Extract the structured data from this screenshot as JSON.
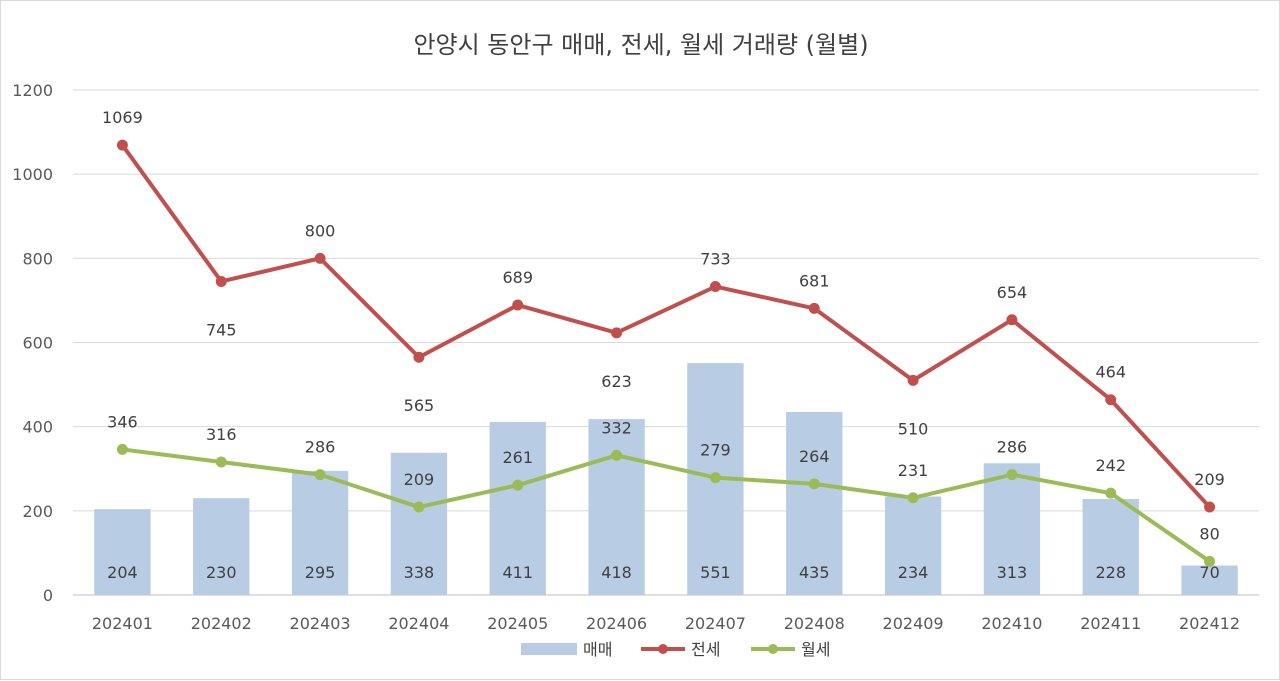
{
  "chart_data": {
    "type": "bar",
    "title": "안양시 동안구 매매, 전세, 월세 거래량 (월별)",
    "categories": [
      "202401",
      "202402",
      "202403",
      "202404",
      "202405",
      "202406",
      "202407",
      "202408",
      "202409",
      "202410",
      "202411",
      "202412"
    ],
    "ylim": [
      0,
      1200
    ],
    "yticks": [
      0,
      200,
      400,
      600,
      800,
      1000,
      1200
    ],
    "grid": true,
    "legend_position": "bottom",
    "series": [
      {
        "name": "매매",
        "type": "bar",
        "color": "#b8cce4",
        "values": [
          204,
          230,
          295,
          338,
          411,
          418,
          551,
          435,
          234,
          313,
          228,
          70
        ]
      },
      {
        "name": "전세",
        "type": "line",
        "color": "#c0504d",
        "values": [
          1069,
          745,
          800,
          565,
          689,
          623,
          733,
          681,
          510,
          654,
          464,
          209
        ]
      },
      {
        "name": "월세",
        "type": "line",
        "color": "#9bbb59",
        "values": [
          346,
          316,
          286,
          209,
          261,
          332,
          279,
          264,
          231,
          286,
          242,
          80
        ]
      }
    ]
  }
}
